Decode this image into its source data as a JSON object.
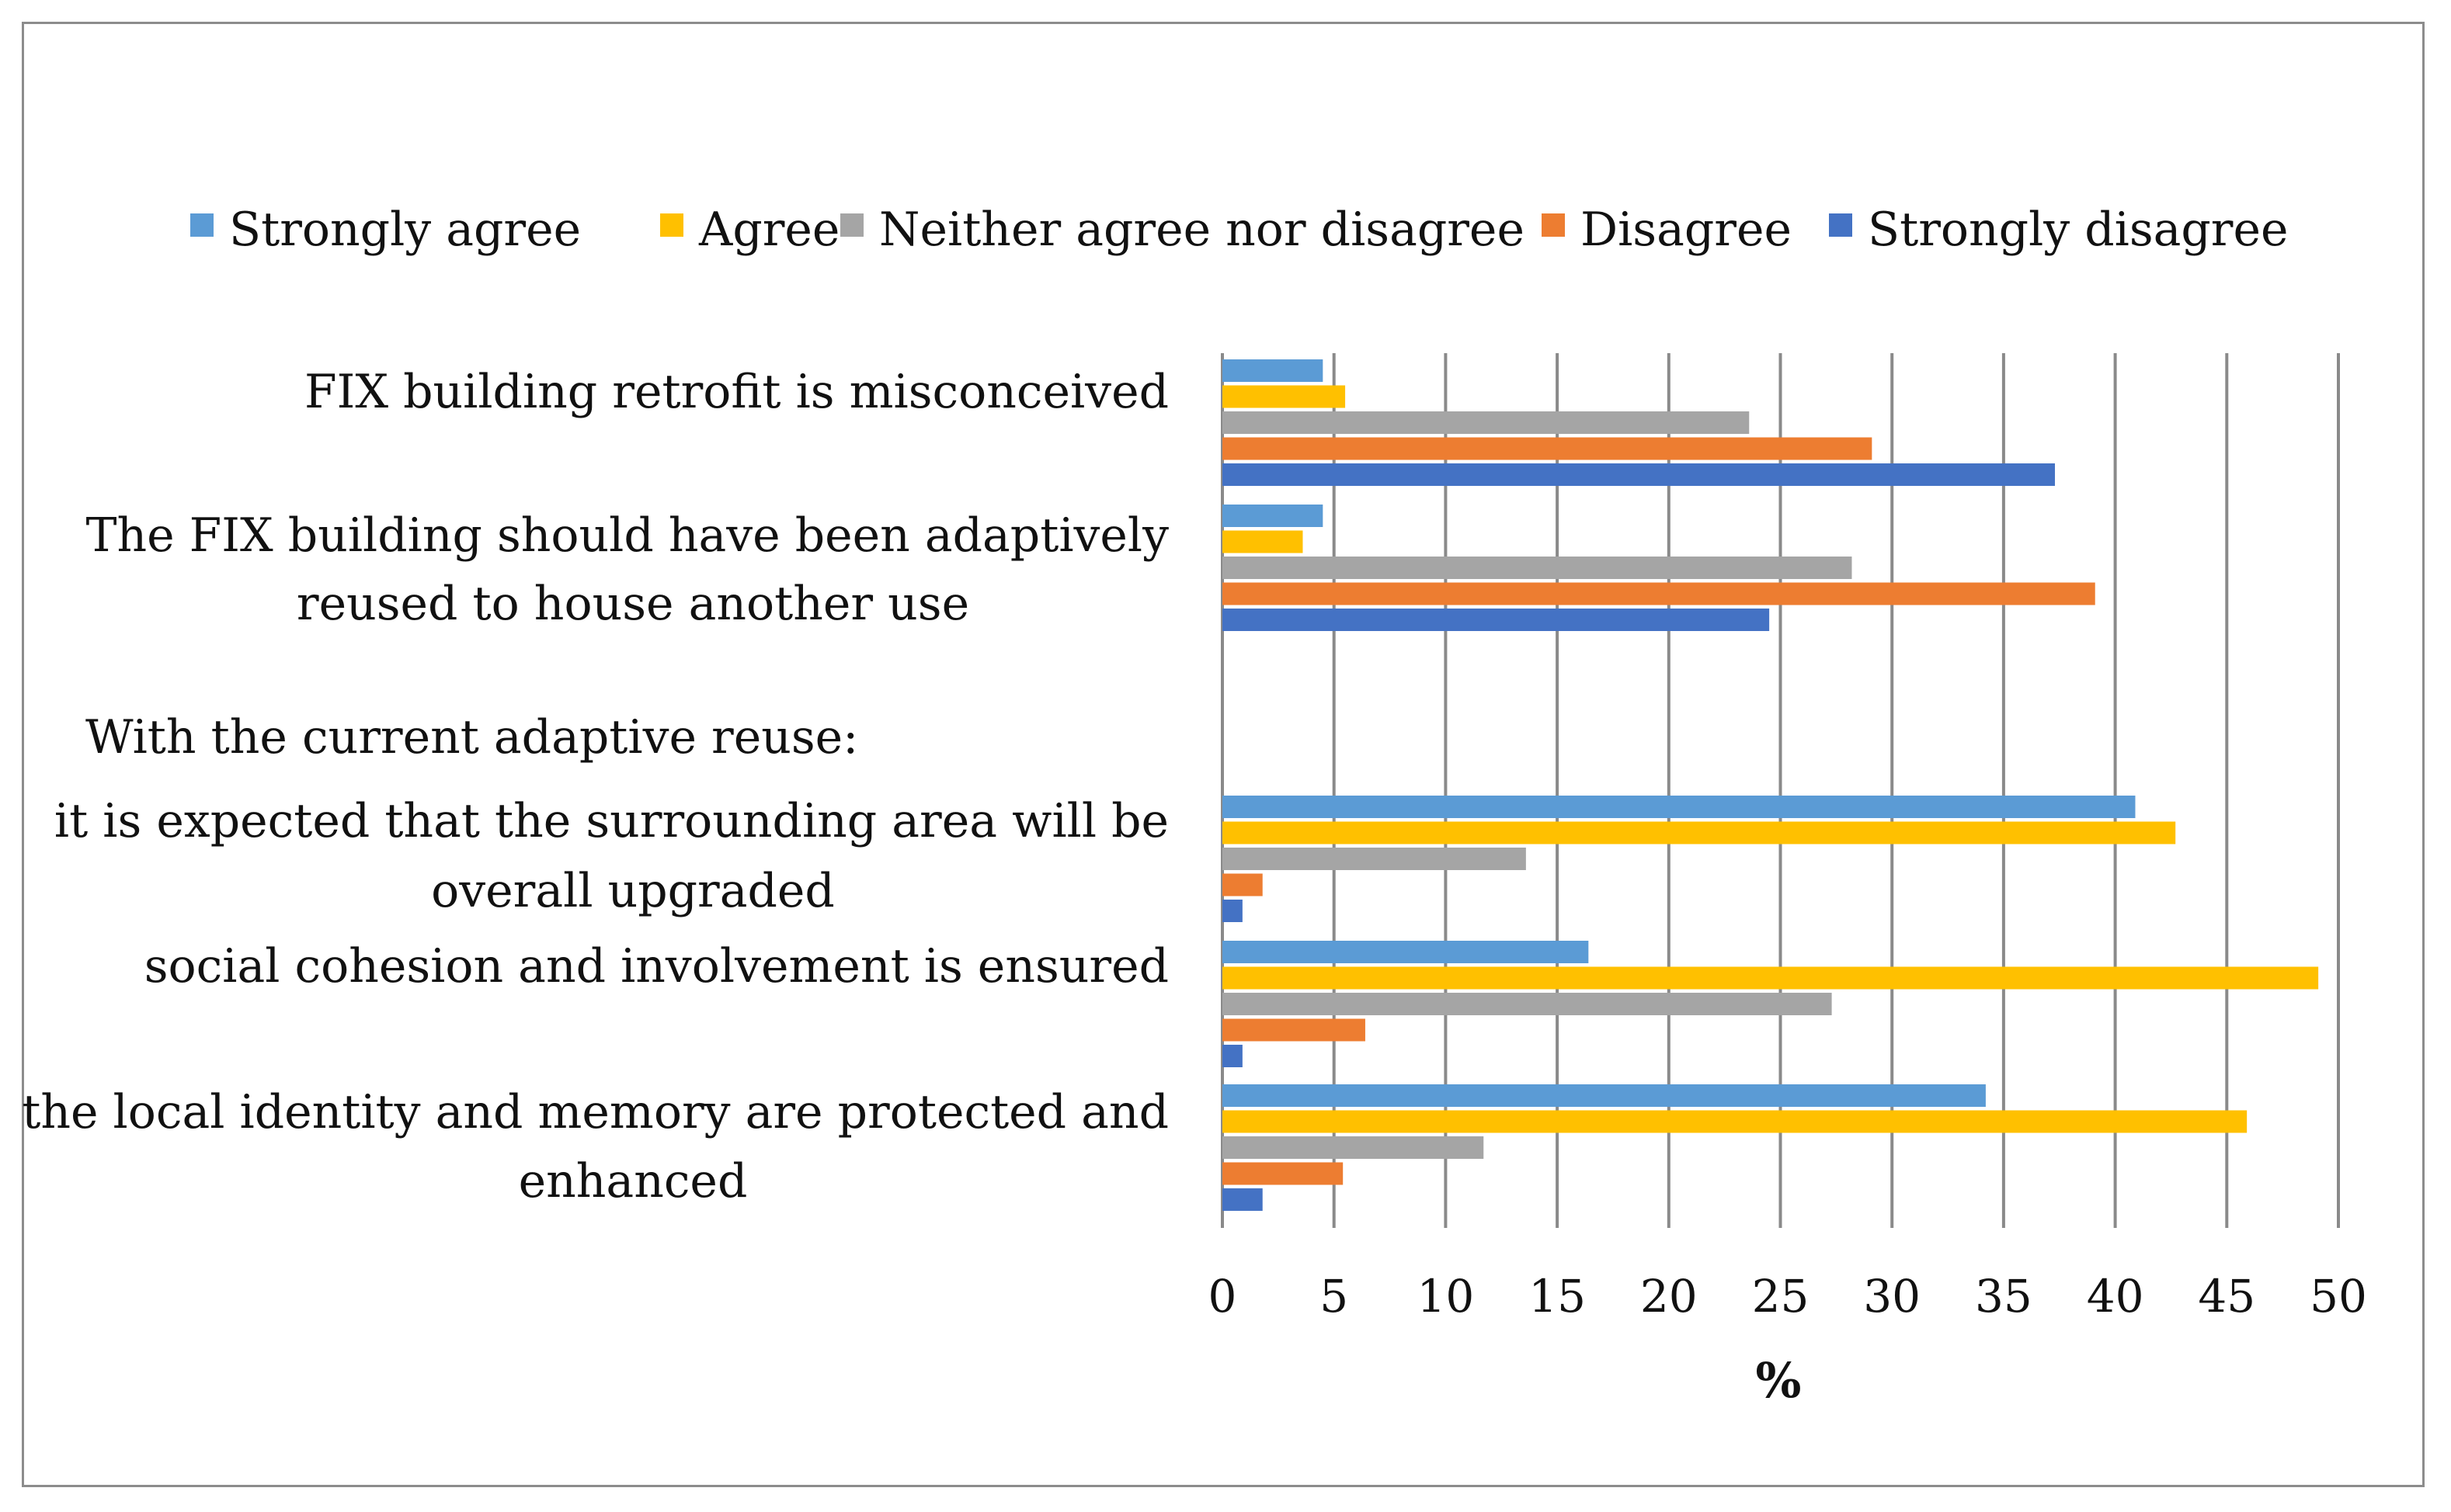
{
  "chart_data": {
    "type": "bar",
    "orientation": "horizontal",
    "title": "",
    "xlabel": "%",
    "ylabel": "",
    "xlim": [
      0,
      50
    ],
    "x_ticks": [
      0,
      5,
      10,
      15,
      20,
      25,
      30,
      35,
      40,
      45,
      50
    ],
    "grid": true,
    "legend_position": "top",
    "section_heading": "With the current adaptive reuse:",
    "categories": [
      "FIX building retrofit is misconceived",
      "The FIX building should have been adaptively reused to house another use",
      "it is expected that the surrounding area will be overall upgraded",
      "social cohesion and involvement is ensured",
      "the local identity and memory are protected and enhanced"
    ],
    "category_label_lines": [
      [
        "FIX building retrofit is misconceived"
      ],
      [
        "The FIX building should have been adaptively",
        "reused to house another use"
      ],
      [
        "it is expected that the surrounding area will be",
        "overall upgraded"
      ],
      [
        "social cohesion and involvement is ensured"
      ],
      [
        "the local identity and memory are protected and",
        "enhanced"
      ]
    ],
    "series": [
      {
        "name": "Strongly agree",
        "color": "#5B9BD5",
        "values": [
          4.5,
          4.5,
          40.9,
          16.4,
          34.2
        ]
      },
      {
        "name": "Agree",
        "color": "#FFC000",
        "values": [
          5.5,
          3.6,
          42.7,
          49.1,
          45.9
        ]
      },
      {
        "name": "Neither agree nor disagree",
        "color": "#A5A5A5",
        "values": [
          23.6,
          28.2,
          13.6,
          27.3,
          11.7
        ]
      },
      {
        "name": "Disagree",
        "color": "#ED7D31",
        "values": [
          29.1,
          39.1,
          1.8,
          6.4,
          5.4
        ]
      },
      {
        "name": "Strongly disagree",
        "color": "#4472C4",
        "values": [
          37.3,
          24.5,
          0.9,
          0.9,
          1.8
        ]
      }
    ]
  }
}
